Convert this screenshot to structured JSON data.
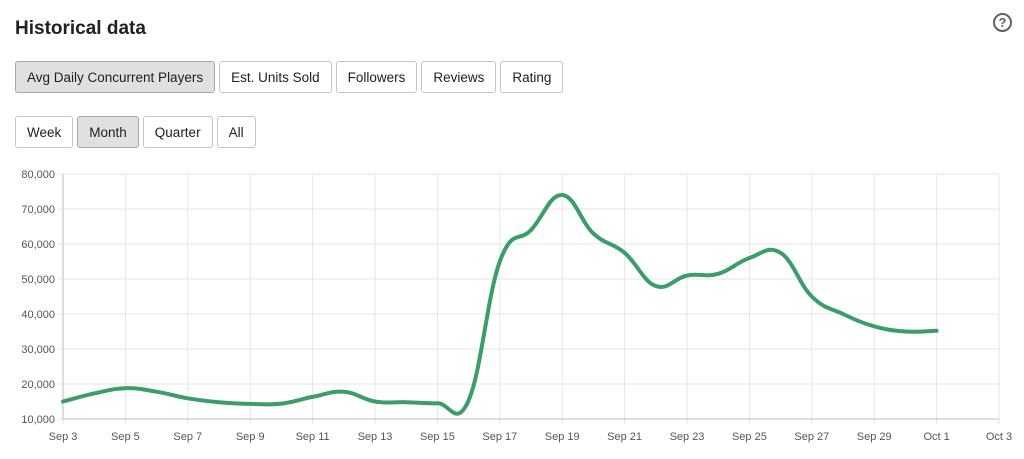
{
  "header": {
    "title": "Historical data",
    "help_icon": "question-circle-icon",
    "help_glyph": "?"
  },
  "metric_tabs": [
    {
      "label": "Avg Daily Concurrent Players",
      "active": true
    },
    {
      "label": "Est. Units Sold",
      "active": false
    },
    {
      "label": "Followers",
      "active": false
    },
    {
      "label": "Reviews",
      "active": false
    },
    {
      "label": "Rating",
      "active": false
    }
  ],
  "range_tabs": [
    {
      "label": "Week",
      "active": false
    },
    {
      "label": "Month",
      "active": true
    },
    {
      "label": "Quarter",
      "active": false
    },
    {
      "label": "All",
      "active": false
    }
  ],
  "chart_data": {
    "type": "line",
    "title": "",
    "xlabel": "",
    "ylabel": "",
    "line_color": "#3a9d6a",
    "grid": true,
    "legend": "none",
    "ylim": [
      10000,
      80000
    ],
    "xlim": [
      "Sep 3",
      "Oct 3"
    ],
    "y_ticks": [
      "10,000",
      "20,000",
      "30,000",
      "40,000",
      "50,000",
      "60,000",
      "70,000",
      "80,000"
    ],
    "x_ticks": [
      "Sep 3",
      "Sep 5",
      "Sep 7",
      "Sep 9",
      "Sep 11",
      "Sep 13",
      "Sep 15",
      "Sep 17",
      "Sep 19",
      "Sep 21",
      "Sep 23",
      "Sep 25",
      "Sep 27",
      "Sep 29",
      "Oct 1",
      "Oct 3"
    ],
    "series": [
      {
        "x": [
          "Sep 3",
          "Sep 4",
          "Sep 5",
          "Sep 6",
          "Sep 7",
          "Sep 8",
          "Sep 9",
          "Sep 10",
          "Sep 11",
          "Sep 12",
          "Sep 13",
          "Sep 14",
          "Sep 15",
          "Sep 16",
          "Sep 17",
          "Sep 18",
          "Sep 19",
          "Sep 20",
          "Sep 21",
          "Sep 22",
          "Sep 23",
          "Sep 24",
          "Sep 25",
          "Sep 26",
          "Sep 27",
          "Sep 28",
          "Sep 29",
          "Sep 30",
          "Oct 1"
        ],
        "values": [
          15000,
          17300,
          18800,
          17800,
          15900,
          14800,
          14300,
          14400,
          16300,
          17800,
          15000,
          14800,
          14500,
          15300,
          55000,
          64000,
          74000,
          63000,
          57500,
          48000,
          51000,
          51500,
          56000,
          57500,
          45000,
          40000,
          36500,
          35000,
          35200
        ]
      }
    ]
  }
}
